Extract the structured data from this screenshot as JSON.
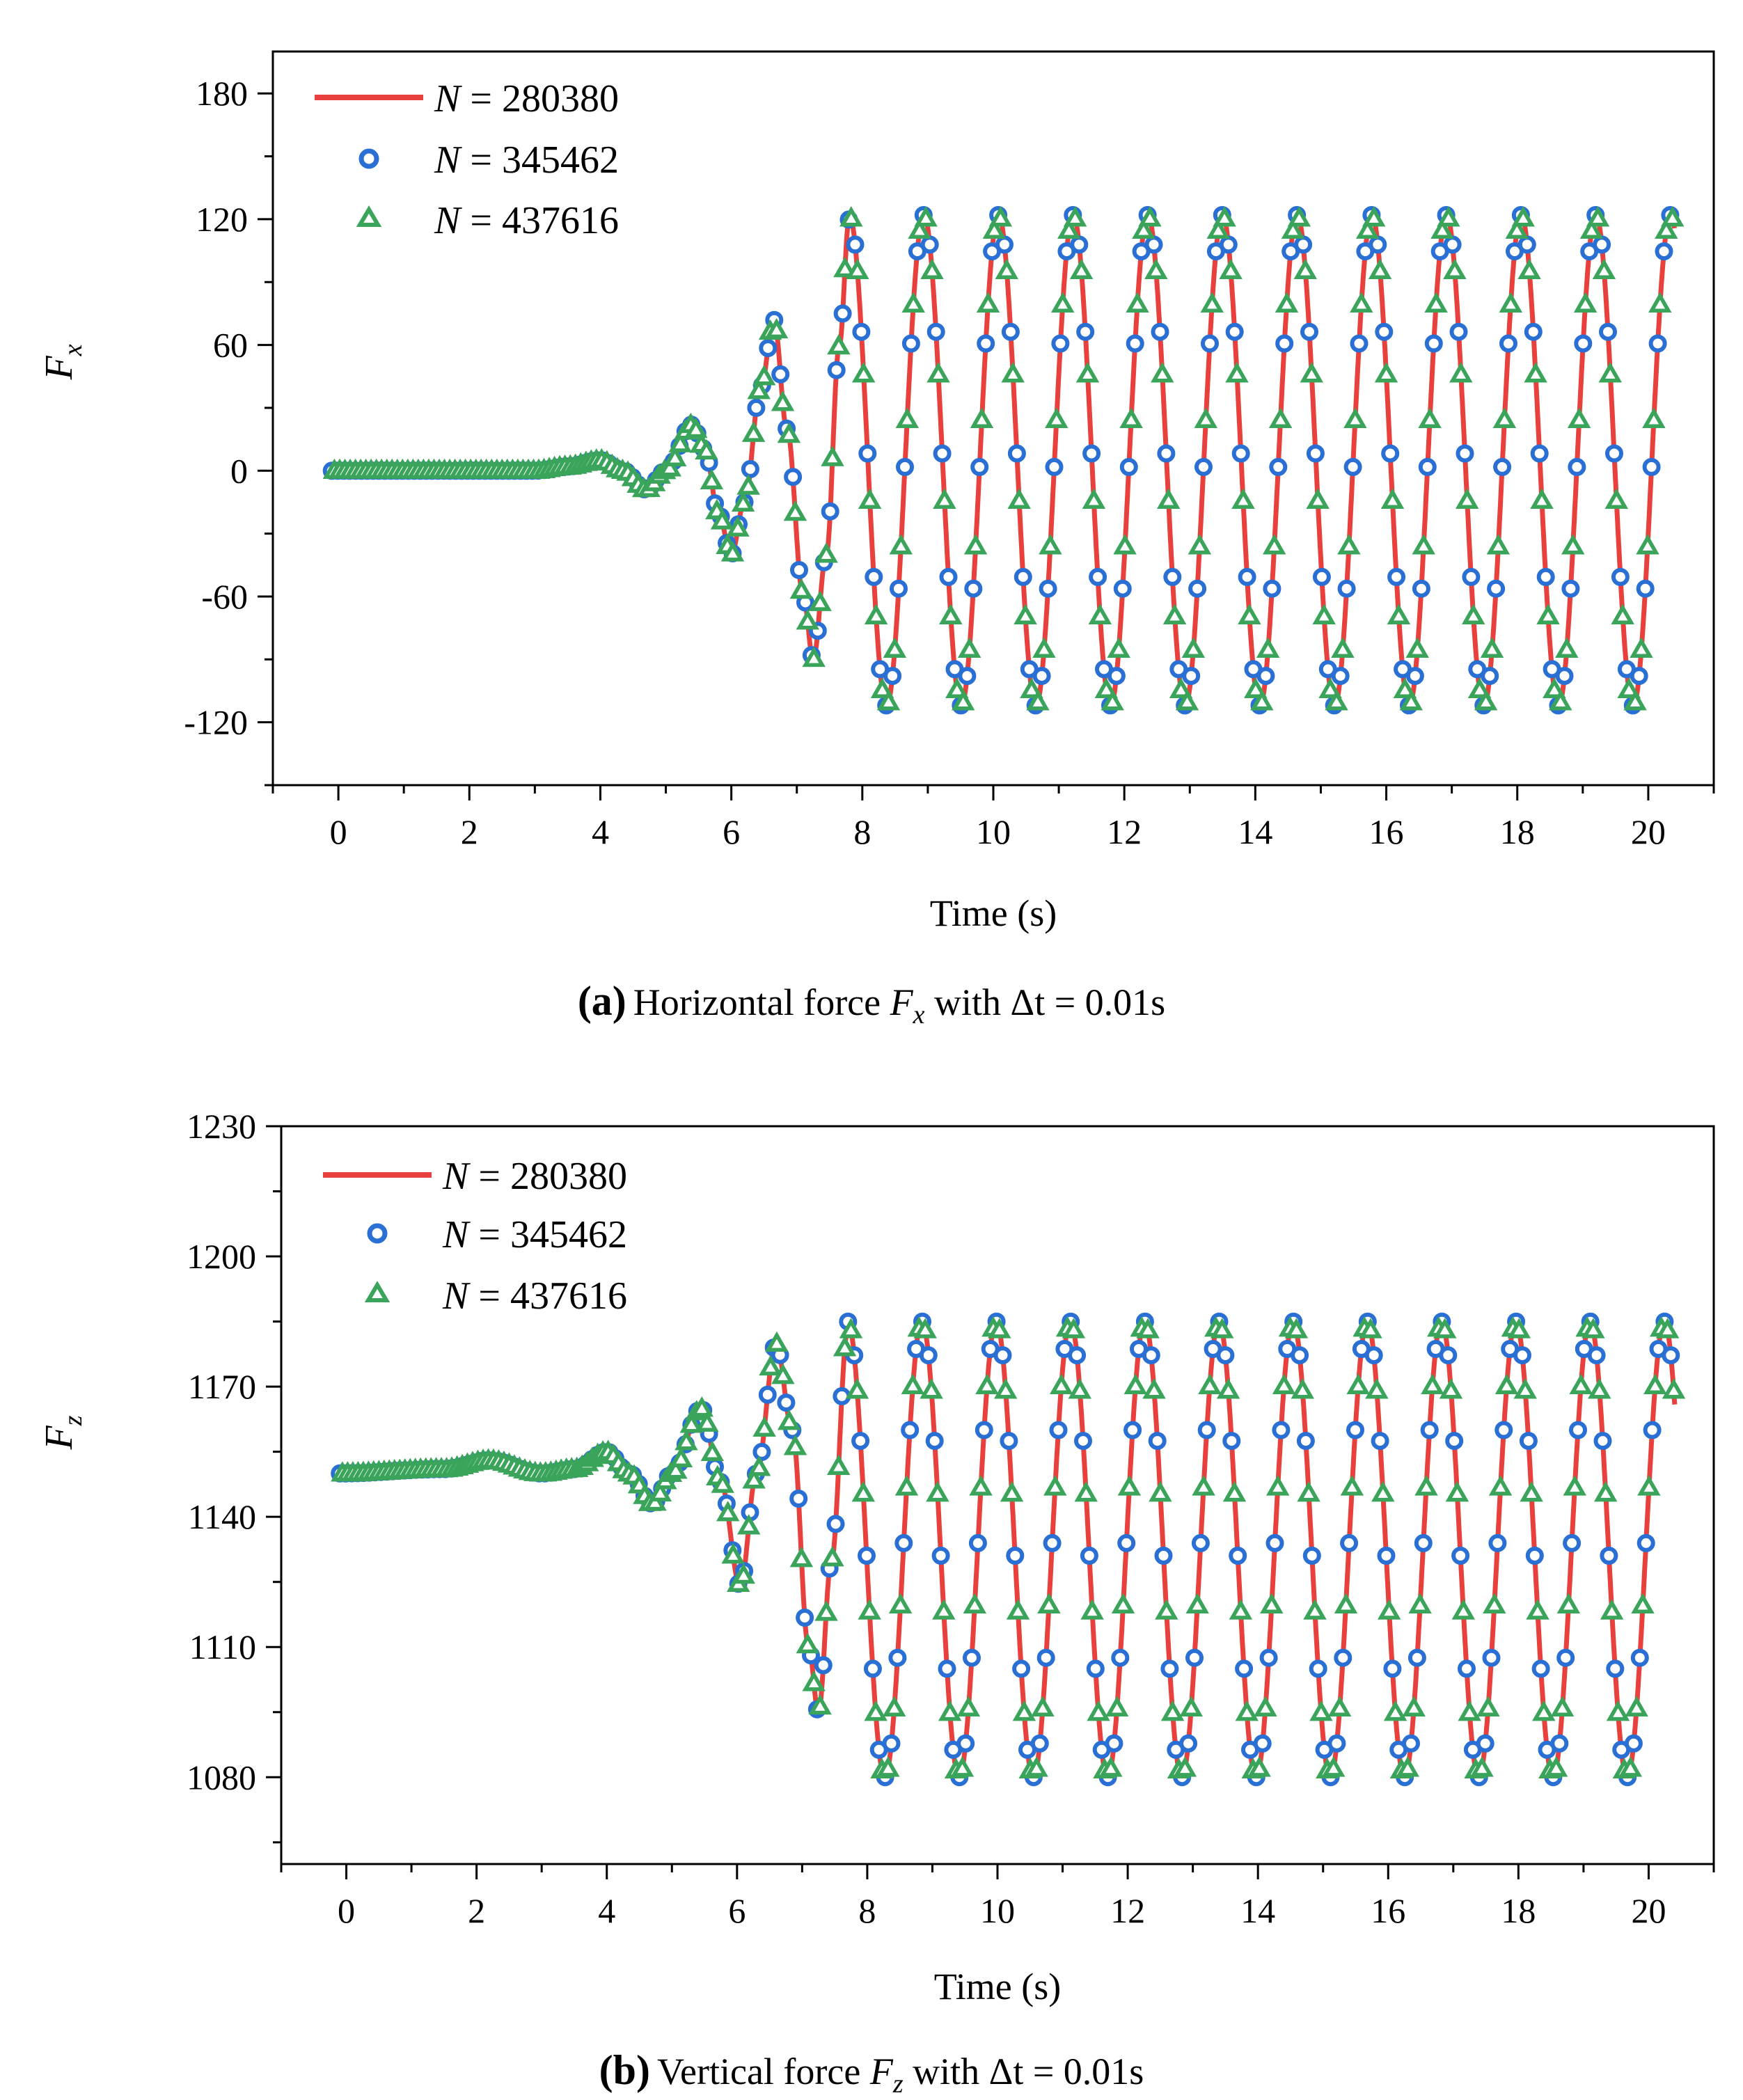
{
  "colors": {
    "line": "#e8403c",
    "circle": "#2a6fd4",
    "triangle": "#3aa55a"
  },
  "chart_data": [
    {
      "type": "line",
      "panel_label": "(a)",
      "caption_text": "Horizontal force ",
      "caption_var": "F",
      "caption_sub": "x",
      "caption_tail": " with Δt = 0.01s",
      "ylabel_main": "F",
      "ylabel_sub": "x",
      "xlabel": "Time (s)",
      "xlim": [
        -1,
        21
      ],
      "ylim": [
        -150,
        200
      ],
      "xticks": [
        0,
        2,
        4,
        6,
        8,
        10,
        12,
        14,
        16,
        18,
        20
      ],
      "xtick_labels": [
        "0",
        "2",
        "4",
        "6",
        "8",
        "10",
        "12",
        "14",
        "16",
        "18",
        "20"
      ],
      "yticks": [
        -120,
        -60,
        0,
        60,
        120,
        180
      ],
      "ytick_labels": [
        "-120",
        "-60",
        "0",
        "60",
        "120",
        "180"
      ],
      "legend_loc": "top-left",
      "series": [
        {
          "name_var": "N",
          "name_value": " = 280380",
          "marker": "line"
        },
        {
          "name_var": "N",
          "name_value": " = 345462",
          "marker": "circle"
        },
        {
          "name_var": "N",
          "name_value": " = 437616",
          "marker": "triangle"
        }
      ],
      "model": {
        "t_start": -0.1,
        "t_end": 20.4,
        "pre": [
          [
            -0.1,
            0
          ],
          [
            3.0,
            0
          ],
          [
            3.5,
            2
          ],
          [
            4.0,
            5
          ],
          [
            4.35,
            0
          ],
          [
            4.7,
            -9
          ],
          [
            5.0,
            0
          ],
          [
            5.4,
            22
          ],
          [
            5.6,
            10
          ],
          [
            5.8,
            -20
          ],
          [
            6.0,
            -40
          ],
          [
            6.2,
            -15
          ],
          [
            6.45,
            40
          ],
          [
            6.65,
            72
          ],
          [
            6.85,
            20
          ],
          [
            7.1,
            -60
          ],
          [
            7.25,
            -90
          ],
          [
            7.45,
            -40
          ],
          [
            7.65,
            60
          ],
          [
            7.8,
            120
          ]
        ],
        "osc_t0": 7.8,
        "osc_period": 1.14,
        "osc_peak": 122,
        "osc_trough": -112
      }
    },
    {
      "type": "line",
      "panel_label": "(b)",
      "caption_text": "Vertical force ",
      "caption_var": "F",
      "caption_sub": "z",
      "caption_tail": " with Δt = 0.01s",
      "ylabel_main": "F",
      "ylabel_sub": "z",
      "xlabel": "Time (s)",
      "xlim": [
        -1,
        21
      ],
      "ylim": [
        1060,
        1230
      ],
      "xticks": [
        0,
        2,
        4,
        6,
        8,
        10,
        12,
        14,
        16,
        18,
        20
      ],
      "xtick_labels": [
        "0",
        "2",
        "4",
        "6",
        "8",
        "10",
        "12",
        "14",
        "16",
        "18",
        "20"
      ],
      "yticks": [
        1080,
        1110,
        1140,
        1170,
        1200,
        1230
      ],
      "ytick_labels": [
        "1080",
        "1110",
        "1140",
        "1170",
        "1200",
        "1230"
      ],
      "legend_loc": "top-left",
      "series": [
        {
          "name_var": "N",
          "name_value": " = 280380",
          "marker": "line"
        },
        {
          "name_var": "N",
          "name_value": " = 345462",
          "marker": "circle"
        },
        {
          "name_var": "N",
          "name_value": " = 437616",
          "marker": "triangle"
        }
      ],
      "model": {
        "t_start": -0.1,
        "t_end": 20.4,
        "pre": [
          [
            -0.1,
            1150
          ],
          [
            1.5,
            1151
          ],
          [
            2.2,
            1153
          ],
          [
            3.0,
            1150
          ],
          [
            3.5,
            1151
          ],
          [
            4.0,
            1155
          ],
          [
            4.35,
            1150
          ],
          [
            4.7,
            1143
          ],
          [
            5.0,
            1150
          ],
          [
            5.45,
            1165
          ],
          [
            5.75,
            1148
          ],
          [
            6.05,
            1124
          ],
          [
            6.3,
            1150
          ],
          [
            6.6,
            1180
          ],
          [
            6.85,
            1160
          ],
          [
            7.1,
            1110
          ],
          [
            7.25,
            1095
          ],
          [
            7.45,
            1130
          ],
          [
            7.7,
            1183
          ]
        ],
        "osc_t0": 7.7,
        "osc_period": 1.14,
        "osc_peak": 1185,
        "osc_trough": 1080
      }
    }
  ]
}
